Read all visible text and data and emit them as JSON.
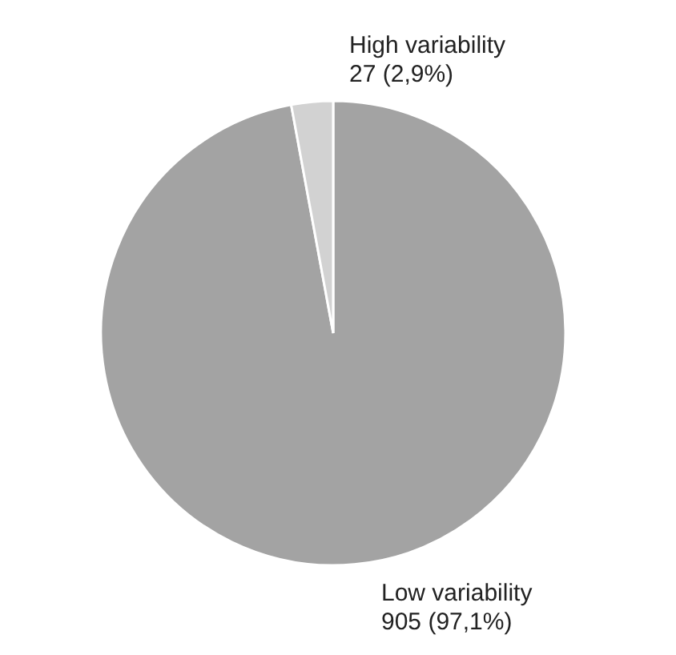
{
  "chart_data": {
    "type": "pie",
    "categories": [
      "Low variability",
      "High variability"
    ],
    "values": [
      905,
      27
    ],
    "colors": [
      "#a3a3a3",
      "#d2d2d2"
    ],
    "value_labels": [
      "905 (97,1%)",
      "27 (2,9%)"
    ]
  }
}
